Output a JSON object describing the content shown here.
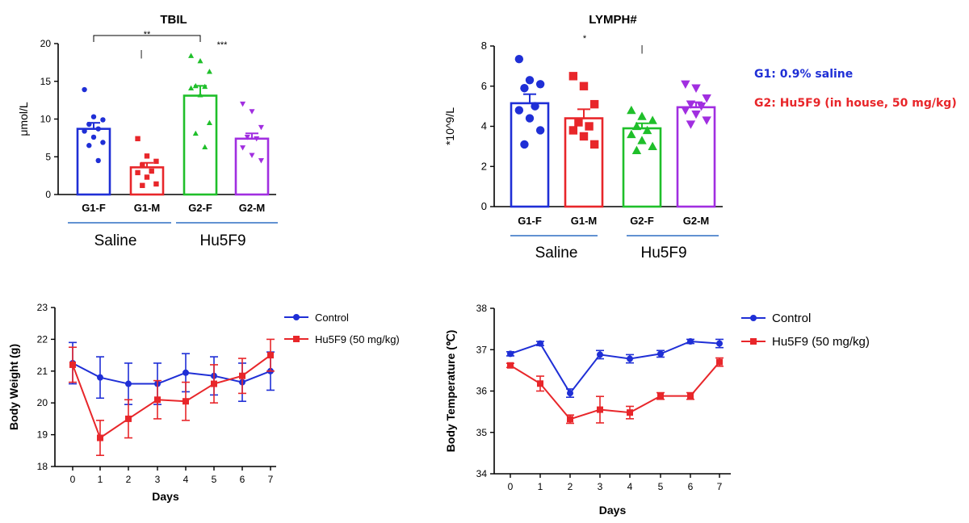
{
  "chart_data": [
    {
      "id": "tbil",
      "type": "bar",
      "title": "TBIL",
      "ylabel": "μmol/L",
      "xlabel": "",
      "ylim": [
        0,
        20
      ],
      "yticks": [
        "0",
        "5",
        "10",
        "15",
        "20"
      ],
      "categories": [
        "G1-F",
        "G1-M",
        "G2-F",
        "G2-M"
      ],
      "values": [
        8.7,
        3.6,
        13.1,
        7.4
      ],
      "errors": [
        0.8,
        0.6,
        1.3,
        0.7
      ],
      "colors": [
        "#1f2fd6",
        "#e8262a",
        "#1fbf2a",
        "#a12ee0"
      ],
      "markers": [
        "circle",
        "square",
        "triangle",
        "triangle-down"
      ],
      "points": [
        [
          13.9,
          10.3,
          9.9,
          9.3,
          8.7,
          8.4,
          7.6,
          6.9,
          6.5,
          4.5
        ],
        [
          7.4,
          5.1,
          4.4,
          3.9,
          3.1,
          2.9,
          2.3,
          1.4,
          1.2
        ],
        [
          18.4,
          17.7,
          16.3,
          14.4,
          14.3,
          14.1,
          13.2,
          9.5,
          8.1,
          6.3
        ],
        [
          12.0,
          11.0,
          8.9,
          7.6,
          7.4,
          6.2,
          5.2,
          4.5
        ]
      ],
      "groups": [
        "Saline",
        "Hu5F9"
      ],
      "significance": [
        "**",
        "|",
        "***"
      ]
    },
    {
      "id": "lymph",
      "type": "bar",
      "title": "LYMPH#",
      "ylabel": "*10^9/L",
      "xlabel": "",
      "ylim": [
        0,
        8
      ],
      "yticks": [
        "0",
        "2",
        "4",
        "6",
        "8"
      ],
      "categories": [
        "G1-F",
        "G1-M",
        "G2-F",
        "G2-M"
      ],
      "values": [
        5.15,
        4.4,
        3.9,
        4.95
      ],
      "errors": [
        0.45,
        0.45,
        0.25,
        0.25
      ],
      "colors": [
        "#1f2fd6",
        "#e8262a",
        "#1fbf2a",
        "#a12ee0"
      ],
      "markers": [
        "circle",
        "square",
        "triangle",
        "triangle-down"
      ],
      "points": [
        [
          7.35,
          6.3,
          6.1,
          5.9,
          5.0,
          4.8,
          4.4,
          3.8,
          3.1
        ],
        [
          6.5,
          6.0,
          5.1,
          4.2,
          4.0,
          3.8,
          3.5,
          3.1
        ],
        [
          4.8,
          4.5,
          4.3,
          4.0,
          3.8,
          3.6,
          3.3,
          3.0,
          2.8
        ],
        [
          6.1,
          5.9,
          5.4,
          5.1,
          5.0,
          4.8,
          4.6,
          4.3,
          4.1
        ]
      ],
      "groups": [
        "Saline",
        "Hu5F9"
      ],
      "significance": [
        "*",
        "|"
      ]
    },
    {
      "id": "weight",
      "type": "line",
      "title": "",
      "xlabel": "Days",
      "ylabel": "Body Weight (g)",
      "x": [
        0,
        1,
        2,
        3,
        4,
        5,
        6,
        7
      ],
      "xticks": [
        "0",
        "1",
        "2",
        "3",
        "4",
        "5",
        "6",
        "7"
      ],
      "ylim": [
        18,
        23
      ],
      "yticks": [
        "18",
        "19",
        "20",
        "21",
        "22",
        "23"
      ],
      "series": [
        {
          "name": "Control",
          "color": "#1f2fd6",
          "marker": "circle",
          "values": [
            21.25,
            20.8,
            20.6,
            20.6,
            20.95,
            20.85,
            20.65,
            21.0
          ],
          "errors": [
            0.65,
            0.65,
            0.65,
            0.65,
            0.6,
            0.6,
            0.6,
            0.6
          ]
        },
        {
          "name": "Hu5F9 (50 mg/kg)",
          "color": "#e8262a",
          "marker": "square",
          "values": [
            21.2,
            18.9,
            19.5,
            20.1,
            20.05,
            20.6,
            20.85,
            21.5
          ],
          "errors": [
            0.55,
            0.55,
            0.6,
            0.6,
            0.6,
            0.6,
            0.55,
            0.5
          ]
        }
      ]
    },
    {
      "id": "temp",
      "type": "line",
      "title": "",
      "xlabel": "Days",
      "ylabel": "Body Temperature (℃)",
      "x": [
        0,
        1,
        2,
        3,
        4,
        5,
        6,
        7
      ],
      "xticks": [
        "0",
        "1",
        "2",
        "3",
        "4",
        "5",
        "6",
        "7"
      ],
      "ylim": [
        34,
        38
      ],
      "yticks": [
        "34",
        "35",
        "36",
        "37",
        "38"
      ],
      "series": [
        {
          "name": "Control",
          "color": "#1f2fd6",
          "marker": "circle",
          "values": [
            36.9,
            37.15,
            35.95,
            36.88,
            36.78,
            36.9,
            37.2,
            37.15
          ],
          "errors": [
            0.05,
            0.05,
            0.1,
            0.1,
            0.1,
            0.08,
            0.05,
            0.1
          ]
        },
        {
          "name": "Hu5F9 (50 mg/kg)",
          "color": "#e8262a",
          "marker": "square",
          "values": [
            36.62,
            36.18,
            35.32,
            35.55,
            35.48,
            35.88,
            35.88,
            36.7
          ],
          "errors": [
            0.05,
            0.18,
            0.1,
            0.32,
            0.15,
            0.08,
            0.08,
            0.1
          ]
        }
      ]
    }
  ],
  "legend": {
    "g1": "G1: 0.9% saline",
    "g2": "G2: Hu5F9 (in house, 50 mg/kg)"
  }
}
